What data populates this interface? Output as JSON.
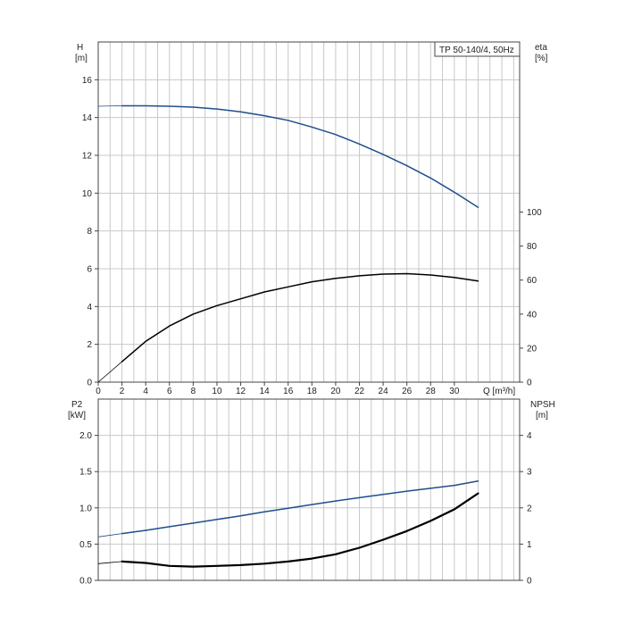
{
  "chart_data": [
    {
      "type": "line",
      "legend": "TP 50-140/4, 50Hz",
      "left_axis": {
        "label_top": "H",
        "label_unit": "[m]",
        "ticks": [
          "0",
          "2",
          "4",
          "6",
          "8",
          "10",
          "12",
          "14",
          "16"
        ],
        "range": [
          0,
          18
        ]
      },
      "right_axis": {
        "label_top": "eta",
        "label_unit": "[%]",
        "ticks": [
          "0",
          "20",
          "40",
          "60",
          "80",
          "100"
        ],
        "range": [
          0,
          200
        ]
      },
      "x_axis": {
        "label": "Q [m³/h]",
        "ticks": [
          "0",
          "2",
          "4",
          "6",
          "8",
          "10",
          "12",
          "14",
          "16",
          "18",
          "20",
          "22",
          "24",
          "26",
          "28",
          "30"
        ],
        "range": [
          0,
          35.5
        ]
      },
      "grid": true,
      "series": [
        {
          "axis": "left",
          "color": "#1f4e8c",
          "x": [
            0,
            2,
            4,
            6,
            8,
            10,
            12,
            14,
            16,
            18,
            20,
            22,
            24,
            26,
            28,
            30,
            32
          ],
          "y": [
            14.6,
            14.62,
            14.62,
            14.6,
            14.55,
            14.45,
            14.3,
            14.1,
            13.85,
            13.5,
            13.1,
            12.6,
            12.05,
            11.45,
            10.8,
            10.05,
            9.25
          ]
        },
        {
          "axis": "right",
          "color": "#000000",
          "x": [
            0,
            2,
            4,
            6,
            8,
            10,
            12,
            14,
            16,
            18,
            20,
            22,
            24,
            26,
            28,
            30,
            32
          ],
          "y": [
            0,
            12,
            24,
            33,
            40,
            45,
            49,
            53,
            56,
            59,
            61,
            62.5,
            63.5,
            63.8,
            63,
            61.5,
            59.5
          ]
        }
      ]
    },
    {
      "type": "line",
      "left_axis": {
        "label_top": "P2",
        "label_unit": "[kW]",
        "ticks": [
          "0.0",
          "0.5",
          "1.0",
          "1.5",
          "2.0"
        ],
        "range": [
          0,
          2.5
        ]
      },
      "right_axis": {
        "label_top": "NPSH",
        "label_unit": "[m]",
        "ticks": [
          "0",
          "1",
          "2",
          "3",
          "4"
        ],
        "range": [
          0,
          5
        ]
      },
      "x_axis": {
        "range": [
          0,
          35.5
        ]
      },
      "grid": true,
      "series": [
        {
          "axis": "left",
          "color": "#1f4e8c",
          "x": [
            0,
            2,
            4,
            6,
            8,
            10,
            12,
            14,
            16,
            18,
            20,
            22,
            24,
            26,
            28,
            30,
            32
          ],
          "y": [
            0.6,
            0.645,
            0.69,
            0.74,
            0.79,
            0.84,
            0.89,
            0.945,
            0.995,
            1.045,
            1.095,
            1.14,
            1.185,
            1.23,
            1.27,
            1.31,
            1.37
          ]
        },
        {
          "axis": "left",
          "color": "#000000",
          "x": [
            0,
            2,
            4,
            6,
            8,
            10,
            12,
            14,
            16,
            18,
            20,
            22,
            24,
            26,
            28,
            30,
            32
          ],
          "y": [
            0.23,
            0.26,
            0.24,
            0.2,
            0.19,
            0.2,
            0.21,
            0.23,
            0.26,
            0.3,
            0.36,
            0.45,
            0.56,
            0.68,
            0.82,
            0.98,
            1.2
          ]
        }
      ]
    }
  ]
}
